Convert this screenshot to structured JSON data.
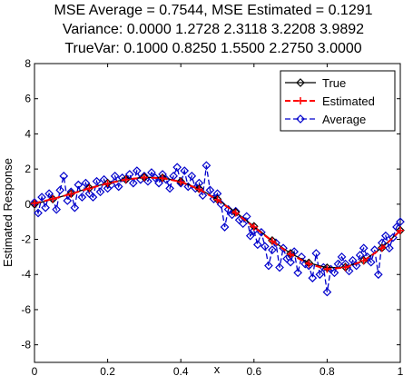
{
  "chart_data": {
    "type": "line",
    "title_lines": [
      "MSE Average = 0.7544, MSE Estimated = 0.1291",
      "Variance:  0.0000  1.2728  2.3118  3.2208  3.9892",
      "TrueVar:  0.1000  0.8250  1.5500  2.2750  3.0000"
    ],
    "xlabel": "x",
    "ylabel": "Estimated Response",
    "xlim": [
      0,
      1
    ],
    "ylim": [
      -9,
      8
    ],
    "xticks": [
      0,
      0.2,
      0.4,
      0.6,
      0.8,
      1
    ],
    "xtick_labels": [
      "0",
      "0.2",
      "0.4",
      "0.6",
      "0.8",
      "1"
    ],
    "yticks": [
      8,
      6,
      4,
      2,
      0,
      -2,
      -4,
      -6,
      -8
    ],
    "ytick_labels": [
      "8",
      "6",
      "4",
      "2",
      "0",
      "-2",
      "-4",
      "-6",
      "-8"
    ],
    "grid": false,
    "legend_position": "top-right",
    "series": [
      {
        "name": "True",
        "color": "#000000",
        "line_style": "solid",
        "marker": "diamond",
        "x": [
          0,
          0.05,
          0.1,
          0.15,
          0.2,
          0.25,
          0.3,
          0.35,
          0.4,
          0.45,
          0.5,
          0.55,
          0.6,
          0.65,
          0.7,
          0.75,
          0.8,
          0.85,
          0.9,
          0.95,
          1.0
        ],
        "y": [
          0,
          0.29,
          0.6,
          0.92,
          1.2,
          1.41,
          1.53,
          1.5,
          1.29,
          0.88,
          0.28,
          -0.46,
          -1.26,
          -2.07,
          -2.8,
          -3.34,
          -3.62,
          -3.58,
          -3.2,
          -2.48,
          -1.49
        ]
      },
      {
        "name": "Estimated",
        "color": "#ff0000",
        "line_style": "dashed",
        "marker": "plus",
        "x": [
          0,
          0.05,
          0.1,
          0.15,
          0.2,
          0.25,
          0.3,
          0.35,
          0.4,
          0.45,
          0.5,
          0.55,
          0.6,
          0.65,
          0.7,
          0.75,
          0.8,
          0.85,
          0.9,
          0.95,
          1.0
        ],
        "y": [
          0.05,
          0.3,
          0.58,
          0.9,
          1.18,
          1.4,
          1.52,
          1.48,
          1.27,
          0.85,
          0.25,
          -0.5,
          -1.3,
          -2.1,
          -2.85,
          -3.4,
          -3.7,
          -3.6,
          -3.22,
          -2.5,
          -1.5
        ]
      },
      {
        "name": "Average",
        "color": "#0000cc",
        "line_style": "dashed",
        "marker": "diamond",
        "x": [
          0,
          0.01,
          0.02,
          0.03,
          0.04,
          0.05,
          0.06,
          0.07,
          0.08,
          0.09,
          0.1,
          0.11,
          0.12,
          0.13,
          0.14,
          0.15,
          0.16,
          0.17,
          0.18,
          0.19,
          0.2,
          0.21,
          0.22,
          0.23,
          0.24,
          0.25,
          0.26,
          0.27,
          0.28,
          0.29,
          0.3,
          0.31,
          0.32,
          0.33,
          0.34,
          0.35,
          0.36,
          0.37,
          0.38,
          0.39,
          0.4,
          0.41,
          0.42,
          0.43,
          0.44,
          0.45,
          0.46,
          0.47,
          0.48,
          0.49,
          0.5,
          0.51,
          0.52,
          0.53,
          0.54,
          0.55,
          0.56,
          0.57,
          0.58,
          0.59,
          0.6,
          0.61,
          0.62,
          0.63,
          0.64,
          0.65,
          0.66,
          0.67,
          0.68,
          0.69,
          0.7,
          0.71,
          0.72,
          0.73,
          0.74,
          0.75,
          0.76,
          0.77,
          0.78,
          0.79,
          0.8,
          0.81,
          0.82,
          0.83,
          0.84,
          0.85,
          0.86,
          0.87,
          0.88,
          0.89,
          0.9,
          0.91,
          0.92,
          0.93,
          0.94,
          0.95,
          0.96,
          0.97,
          0.98,
          0.99,
          1.0
        ],
        "y": [
          0.1,
          -0.5,
          0.4,
          -0.2,
          0.6,
          0.3,
          -0.3,
          0.8,
          1.6,
          0.2,
          0.7,
          -0.2,
          1.1,
          0.4,
          1.2,
          0.6,
          0.4,
          1.3,
          0.7,
          1.4,
          0.9,
          1.1,
          1.6,
          1.0,
          1.5,
          1.4,
          1.7,
          1.2,
          1.9,
          1.4,
          1.6,
          1.3,
          1.8,
          1.5,
          1.2,
          1.7,
          1.4,
          0.9,
          1.6,
          2.1,
          1.2,
          1.9,
          1.0,
          1.6,
          0.9,
          1.2,
          0.5,
          2.2,
          0.8,
          0.3,
          0.6,
          0.0,
          -1.3,
          -0.3,
          -0.6,
          -0.4,
          -0.9,
          -1.1,
          -0.7,
          -1.8,
          -1.5,
          -2.3,
          -1.6,
          -2.4,
          -3.5,
          -2.6,
          -2.2,
          -3.6,
          -2.5,
          -3.1,
          -3.3,
          -2.7,
          -3.9,
          -3.0,
          -3.4,
          -3.5,
          -4.2,
          -2.8,
          -4.0,
          -3.6,
          -5.0,
          -3.7,
          -3.9,
          -3.4,
          -3.0,
          -3.4,
          -3.8,
          -3.2,
          -3.5,
          -2.9,
          -2.5,
          -3.0,
          -3.3,
          -2.6,
          -4.0,
          -2.2,
          -1.8,
          -2.5,
          -1.9,
          -1.3,
          -1.0
        ]
      }
    ]
  }
}
